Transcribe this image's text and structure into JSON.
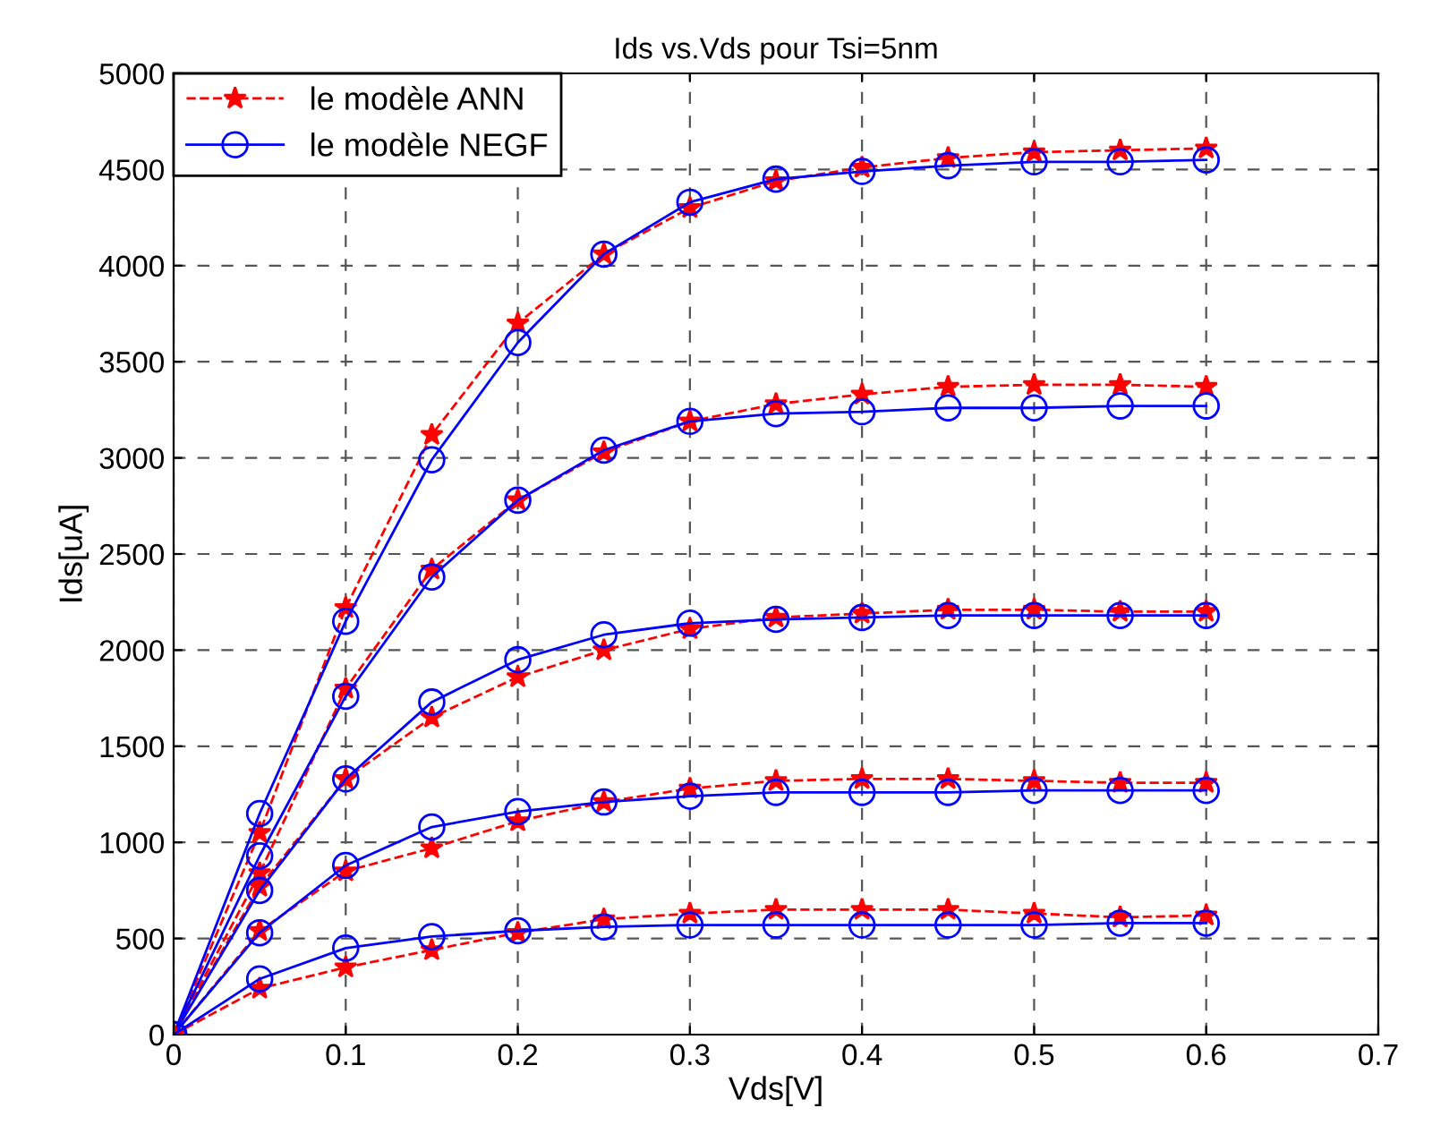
{
  "chart_data": {
    "type": "line",
    "title": "Ids vs.Vds pour Tsi=5nm",
    "xlabel": "Vds[V]",
    "ylabel": "Ids[uA]",
    "xlim": [
      0,
      0.7
    ],
    "xticks": [
      0,
      0.1,
      0.2,
      0.3,
      0.4,
      0.5,
      0.6,
      0.7
    ],
    "ylim": [
      0,
      5000
    ],
    "yticks": [
      0,
      500,
      1000,
      1500,
      2000,
      2500,
      3000,
      3500,
      4000,
      4500,
      5000
    ],
    "grid": true,
    "legend": "top left",
    "x": [
      0,
      0.05,
      0.1,
      0.15,
      0.2,
      0.25,
      0.3,
      0.35,
      0.4,
      0.45,
      0.5,
      0.55,
      0.6
    ],
    "series": [
      {
        "name": "le modèle ANN",
        "color": "#ff0000",
        "marker": "star",
        "line_style": "dashed",
        "values": [
          0,
          1050,
          2220,
          3120,
          3700,
          4060,
          4300,
          4440,
          4510,
          4560,
          4590,
          4600,
          4610
        ]
      },
      {
        "name": "le modèle NEGF",
        "color": "#0000ff",
        "marker": "circle",
        "line_style": "solid",
        "values": [
          0,
          1150,
          2150,
          2990,
          3600,
          4060,
          4330,
          4450,
          4490,
          4520,
          4540,
          4540,
          4550
        ]
      },
      {
        "color": "#ff0000",
        "marker": "star",
        "line_style": "dashed",
        "values": [
          0,
          840,
          1800,
          2420,
          2780,
          3030,
          3190,
          3280,
          3330,
          3370,
          3380,
          3380,
          3370
        ]
      },
      {
        "color": "#0000ff",
        "marker": "circle",
        "line_style": "solid",
        "values": [
          0,
          930,
          1760,
          2380,
          2780,
          3040,
          3190,
          3230,
          3240,
          3260,
          3260,
          3270,
          3270
        ]
      },
      {
        "color": "#ff0000",
        "marker": "star",
        "line_style": "dashed",
        "values": [
          0,
          770,
          1330,
          1650,
          1860,
          2000,
          2110,
          2170,
          2190,
          2210,
          2210,
          2200,
          2200
        ]
      },
      {
        "color": "#0000ff",
        "marker": "circle",
        "line_style": "solid",
        "values": [
          0,
          750,
          1330,
          1730,
          1950,
          2080,
          2140,
          2160,
          2170,
          2180,
          2180,
          2180,
          2180
        ]
      },
      {
        "color": "#ff0000",
        "marker": "star",
        "line_style": "dashed",
        "values": [
          0,
          540,
          850,
          970,
          1110,
          1210,
          1280,
          1320,
          1330,
          1330,
          1320,
          1310,
          1310
        ]
      },
      {
        "color": "#0000ff",
        "marker": "circle",
        "line_style": "solid",
        "values": [
          0,
          530,
          880,
          1080,
          1160,
          1210,
          1240,
          1260,
          1260,
          1260,
          1270,
          1270,
          1270
        ]
      },
      {
        "color": "#ff0000",
        "marker": "star",
        "line_style": "dashed",
        "values": [
          0,
          240,
          350,
          440,
          530,
          600,
          630,
          650,
          650,
          650,
          630,
          610,
          620
        ]
      },
      {
        "color": "#0000ff",
        "marker": "circle",
        "line_style": "solid",
        "values": [
          0,
          290,
          450,
          510,
          540,
          560,
          570,
          570,
          570,
          570,
          570,
          580,
          580
        ]
      }
    ]
  }
}
